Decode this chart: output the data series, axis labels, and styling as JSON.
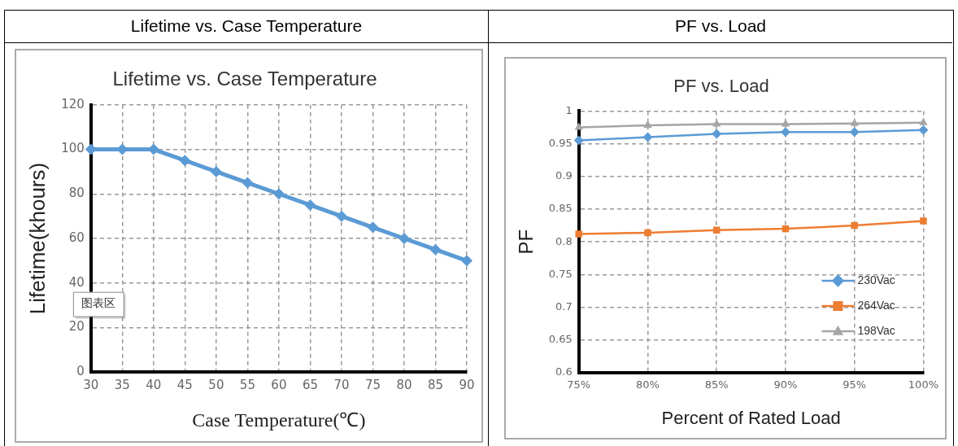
{
  "chart_data": [
    {
      "type": "line",
      "title": "Lifetime vs. Case Temperature",
      "xlabel": "Case Temperature(℃)",
      "ylabel": "Lifetime(khours)",
      "annotations": [
        "Lifetime vs. Case Temperature",
        "图表区"
      ],
      "categories": [
        "30",
        "35",
        "40",
        "45",
        "50",
        "55",
        "60",
        "65",
        "70",
        "75",
        "80",
        "85",
        "90"
      ],
      "values": [
        100,
        100,
        100,
        95,
        90,
        85,
        80,
        75,
        70,
        65,
        60,
        55,
        50
      ],
      "color": "#5b9bd5",
      "ylim": [
        0,
        120
      ],
      "yticks": [
        0,
        20,
        40,
        60,
        80,
        100,
        120
      ],
      "grid": true,
      "marker": "diamond",
      "line_style": "solid"
    },
    {
      "type": "line",
      "title": "PF vs. Load",
      "xlabel": "Percent of Rated Load",
      "ylabel": "PF",
      "annotations": [
        "PF vs. Load"
      ],
      "categories": [
        "75%",
        "80%",
        "85%",
        "90%",
        "95%",
        "100%"
      ],
      "series": [
        {
          "name": "230Vac",
          "color": "#5b9bd5",
          "marker": "diamond",
          "values": [
            0.955,
            0.96,
            0.965,
            0.968,
            0.968,
            0.971
          ]
        },
        {
          "name": "264Vac",
          "color": "#ed7d31",
          "marker": "square",
          "values": [
            0.812,
            0.814,
            0.818,
            0.82,
            0.825,
            0.832
          ]
        },
        {
          "name": "198Vac",
          "color": "#a5a5a5",
          "marker": "triangle",
          "values": [
            0.975,
            0.978,
            0.98,
            0.98,
            0.981,
            0.982
          ]
        }
      ],
      "ylim": [
        0.6,
        1
      ],
      "yticks": [
        0.6,
        0.65,
        0.7,
        0.75,
        0.8,
        0.85,
        0.9,
        0.95,
        1
      ],
      "grid": true,
      "legend": "bottom right",
      "line_style": "solid"
    }
  ]
}
